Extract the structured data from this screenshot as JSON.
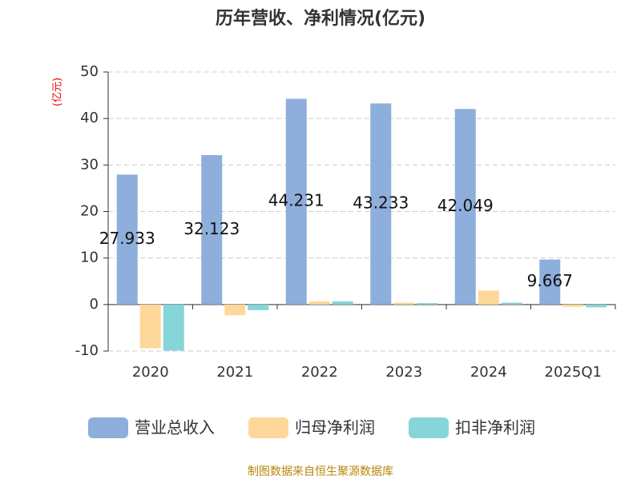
{
  "chart_data": {
    "type": "bar",
    "title": "历年营收、净利情况(亿元)",
    "y_label": "(亿元)",
    "categories": [
      "2020",
      "2021",
      "2022",
      "2023",
      "2024",
      "2025Q1"
    ],
    "series": [
      {
        "name": "营业总收入",
        "color": "#8eaedb",
        "values": [
          27.933,
          32.123,
          44.231,
          43.233,
          42.049,
          9.667
        ],
        "show_labels": true
      },
      {
        "name": "归母净利润",
        "color": "#fdd89a",
        "values": [
          -9.4,
          -2.3,
          0.7,
          0.4,
          3.0,
          -0.5
        ]
      },
      {
        "name": "扣非净利润",
        "color": "#86d5d8",
        "values": [
          -9.9,
          -1.2,
          0.7,
          0.3,
          0.4,
          -0.6
        ]
      }
    ],
    "ylim": [
      -10,
      50
    ],
    "yticks": [
      -10,
      0,
      10,
      20,
      30,
      40,
      50
    ],
    "grid": true,
    "legend": "bottom",
    "source": "制图数据来自恒生聚源数据库"
  }
}
